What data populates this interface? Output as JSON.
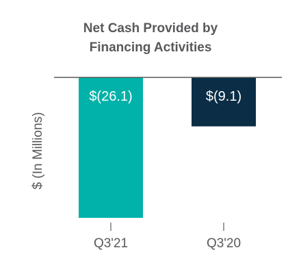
{
  "chart_data": {
    "type": "bar",
    "title_lines": [
      "Net Cash Provided by",
      "Financing Activities"
    ],
    "ylabel": "$ (In Millions)",
    "xlabel": "",
    "categories": [
      "Q3'21",
      "Q3'20"
    ],
    "values": [
      -26.1,
      -9.1
    ],
    "data_labels": [
      "$(26.1)",
      "$(9.1)"
    ],
    "colors": [
      "#00b2a9",
      "#0b2d45"
    ],
    "ylim": [
      -26.1,
      0
    ],
    "grid": false,
    "legend": "none"
  }
}
